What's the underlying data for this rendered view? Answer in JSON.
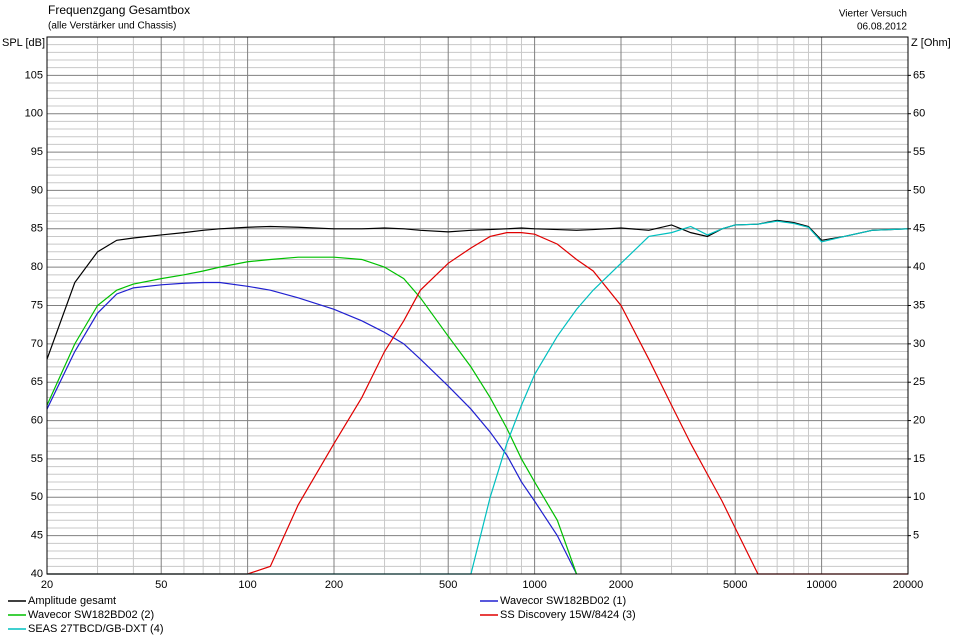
{
  "chart_data": {
    "type": "line",
    "title": "Frequenzgang Gesamtbox",
    "subtitle": "(alle Verstärker und Chassis)",
    "annotations": [
      "Vierter Versuch",
      "06.08.2012"
    ],
    "ylabel": "SPL [dB]",
    "y2label": "Z [Ohm]",
    "log_x": true,
    "grid": true,
    "legend": "bottom",
    "xlim": [
      20,
      20000
    ],
    "xticks": [
      20,
      50,
      100,
      200,
      500,
      1000,
      2000,
      5000,
      10000,
      20000
    ],
    "xminorticks": [
      30,
      40,
      60,
      70,
      80,
      90,
      300,
      400,
      600,
      700,
      800,
      900,
      3000,
      4000,
      6000,
      7000,
      8000,
      9000
    ],
    "ylim": [
      40,
      110
    ],
    "yticks": [
      40,
      45,
      50,
      55,
      60,
      65,
      70,
      75,
      80,
      85,
      90,
      95,
      100,
      105
    ],
    "yminorticks": [
      41,
      42,
      43,
      44,
      46,
      47,
      48,
      49,
      51,
      52,
      53,
      54,
      56,
      57,
      58,
      59,
      61,
      62,
      63,
      64,
      66,
      67,
      68,
      69,
      71,
      72,
      73,
      74,
      76,
      77,
      78,
      79,
      81,
      82,
      83,
      84,
      86,
      87,
      88,
      89,
      91,
      92,
      93,
      94,
      96,
      97,
      98,
      99,
      101,
      102,
      103,
      104,
      106,
      107,
      108,
      109
    ],
    "y2lim": [
      0,
      70
    ],
    "y2ticks": [
      5,
      10,
      15,
      20,
      25,
      30,
      35,
      40,
      45,
      50,
      55,
      60,
      65
    ],
    "x": [
      20,
      25,
      30,
      35,
      40,
      50,
      60,
      70,
      80,
      100,
      120,
      150,
      200,
      250,
      300,
      350,
      400,
      500,
      600,
      700,
      800,
      900,
      1000,
      1200,
      1400,
      1600,
      2000,
      2500,
      3000,
      3500,
      4000,
      4500,
      5000,
      6000,
      7000,
      8000,
      9000,
      10000,
      12000,
      15000,
      20000
    ],
    "series": [
      {
        "name": "Amplitude gesamt",
        "color": "#000000",
        "values": [
          68,
          78,
          82,
          83.5,
          83.8,
          84.2,
          84.5,
          84.8,
          85,
          85.2,
          85.3,
          85.2,
          85,
          85,
          85.1,
          85,
          84.8,
          84.6,
          84.8,
          84.9,
          85,
          85.1,
          85,
          84.9,
          84.8,
          84.9,
          85.1,
          84.8,
          85.5,
          84.5,
          84,
          85,
          85.5,
          85.6,
          86.1,
          85.8,
          85.3,
          83.5,
          84,
          84.8,
          85
        ]
      },
      {
        "name": "Wavecor SW182BD02 (1)",
        "color": "#2020d0",
        "values": [
          61.5,
          69,
          74,
          76.5,
          77.3,
          77.7,
          77.9,
          78,
          78,
          77.5,
          77,
          76,
          74.5,
          73,
          71.5,
          70,
          68,
          64.5,
          61.5,
          58.5,
          55.5,
          52,
          49.5,
          45,
          40,
          null,
          null,
          null,
          null,
          null,
          null,
          null,
          null,
          null,
          null,
          null,
          null,
          null,
          null,
          null,
          null
        ]
      },
      {
        "name": "Wavecor SW182BD02 (2)",
        "color": "#00c000",
        "values": [
          62,
          70,
          75,
          77,
          77.8,
          78.5,
          79,
          79.5,
          80,
          80.7,
          81,
          81.3,
          81.3,
          81,
          80,
          78.5,
          76,
          71,
          67,
          63,
          59,
          55,
          52,
          47,
          40,
          null,
          null,
          null,
          null,
          null,
          null,
          null,
          null,
          null,
          null,
          null,
          null,
          null,
          null,
          null,
          null
        ]
      },
      {
        "name": "SS Discovery 15W/8424 (3)",
        "color": "#e00000",
        "values": [
          40,
          40,
          40,
          40,
          40,
          40,
          40,
          40,
          40,
          40,
          41,
          49,
          57,
          63,
          69,
          73,
          77,
          80.5,
          82.5,
          84,
          84.5,
          84.5,
          84.3,
          83,
          81,
          79.5,
          75,
          68,
          62,
          57,
          53,
          49.5,
          46,
          40,
          40,
          40,
          40,
          40,
          40,
          40,
          40
        ]
      },
      {
        "name": "SEAS 27TBCD/GB-DXT (4)",
        "color": "#00c0c0",
        "values": [
          40,
          40,
          40,
          40,
          40,
          40,
          40,
          40,
          40,
          40,
          40,
          40,
          40,
          40,
          40,
          40,
          40,
          40,
          40,
          50,
          57,
          62,
          66,
          71,
          74.5,
          77,
          80.5,
          84,
          84.5,
          85.3,
          84.2,
          85,
          85.5,
          85.6,
          86,
          85.7,
          85.2,
          83.3,
          84,
          84.8,
          85
        ]
      }
    ]
  }
}
